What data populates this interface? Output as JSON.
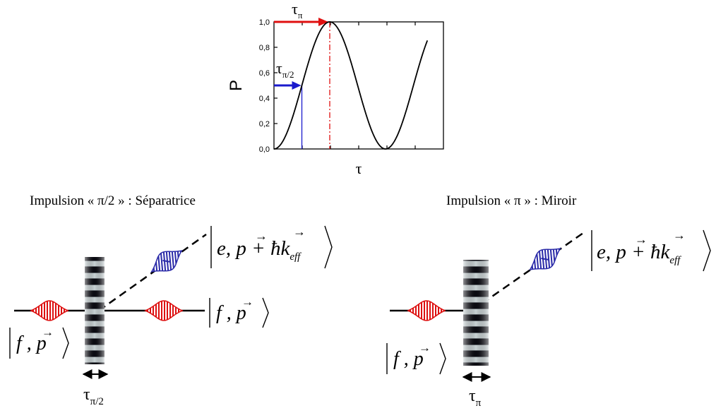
{
  "chart_data": {
    "type": "line",
    "ylabel": "P",
    "xlabel": "τ",
    "ylim": [
      0,
      1.0
    ],
    "yticks": [
      "0,0",
      "0,2",
      "0,4",
      "0,6",
      "0,8",
      "1,0"
    ],
    "x_rel_to_tau_pi": [
      0,
      0.25,
      0.5,
      0.75,
      1.0,
      1.25,
      1.5,
      1.75,
      2.0,
      2.25,
      2.5,
      2.75
    ],
    "values": [
      0,
      0.146,
      0.5,
      0.854,
      1.0,
      0.854,
      0.5,
      0.146,
      0,
      0.146,
      0.5,
      0.854
    ],
    "annotations": {
      "tau_pi": {
        "label": "τ",
        "sub": "π",
        "level": 1.0
      },
      "tau_pi2": {
        "label": "τ",
        "sub": "π/2",
        "level": 0.5
      }
    },
    "colors": {
      "curve": "#000000",
      "pi_marker": "#ff0000",
      "pi2_marker": "#0000cc"
    }
  },
  "left_panel": {
    "caption": "Impulsion « π/2 » : Séparatrice",
    "state_in": {
      "label": "f , p"
    },
    "state_out_f": {
      "label": "f , p"
    },
    "state_out_e": {
      "label": "e, p + ħk",
      "sub": "eff"
    },
    "duration": {
      "label": "τ",
      "sub": "π/2"
    }
  },
  "right_panel": {
    "caption": "Impulsion « π » : Miroir",
    "state_in": {
      "label": "f , p"
    },
    "state_out_e": {
      "label": "e, p + ħk",
      "sub": "eff"
    },
    "duration": {
      "label": "τ",
      "sub": "π"
    }
  },
  "colors": {
    "packet_f": "#dd1111",
    "packet_e": "#2a2aa8"
  }
}
